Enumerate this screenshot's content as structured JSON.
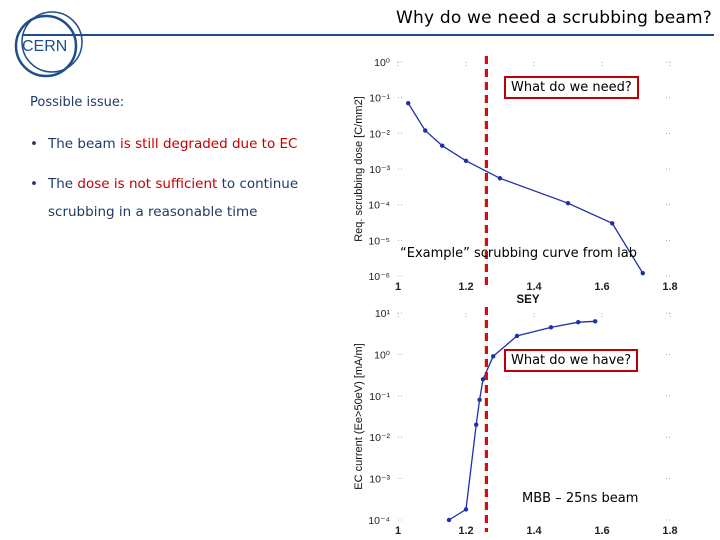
{
  "header": {
    "title": "Why do we need a scrubbing beam?",
    "logo_text": "CERN",
    "rule_color": "#1f4e8a"
  },
  "issue": {
    "heading": "Possible issue:",
    "bullets": [
      {
        "pre": "The beam ",
        "hl": "is still degraded due to EC",
        "post": "",
        "cont": ""
      },
      {
        "pre": "The ",
        "hl": "dose is not sufficient",
        "post": " to continue",
        "cont": "scrubbing in a reasonable time"
      }
    ],
    "highlight_color": "#c00000"
  },
  "callouts": {
    "top": "What do we need?",
    "bottom": "What do we have?"
  },
  "notes": {
    "top": "“Example” scrubbing curve from lab",
    "bottom": "MBB – 25ns beam"
  },
  "chart_data": [
    {
      "type": "line",
      "title": "",
      "xlabel": "SEY",
      "ylabel": "Req. scrubbing dose [C/mm2]",
      "yscale": "log",
      "xlim": [
        1,
        1.8
      ],
      "ylim": [
        1e-06,
        1
      ],
      "x_tick_labels": [
        "1",
        "1.2",
        "1.4",
        "1.6",
        "1.8"
      ],
      "y_tick_labels": [
        "10⁰",
        "10⁻¹",
        "10⁻²",
        "10⁻³",
        "10⁻⁴",
        "10⁻⁵",
        "10⁻⁶"
      ],
      "series": [
        {
          "color": "#1f2fa8",
          "x": [
            1.03,
            1.08,
            1.13,
            1.2,
            1.3,
            1.5,
            1.63,
            1.72
          ],
          "y": [
            0.07,
            0.012,
            0.0045,
            0.0017,
            0.00055,
            0.00011,
            3e-05,
            1.2e-06
          ]
        }
      ],
      "marker_line": {
        "x": 1.26,
        "color": "#d01010"
      }
    },
    {
      "type": "line",
      "title": "",
      "xlabel": "",
      "ylabel": "EC current (Ee>50eV) [mA/m]",
      "yscale": "log",
      "xlim": [
        1,
        1.8
      ],
      "ylim": [
        0.0001,
        10
      ],
      "x_tick_labels": [
        "1",
        "1.2",
        "1.4",
        "1.6",
        "1.8"
      ],
      "y_tick_labels": [
        "10¹",
        "10⁰",
        "10⁻¹",
        "10⁻²",
        "10⁻³",
        "10⁻⁴"
      ],
      "series": [
        {
          "color": "#1f2fa8",
          "x": [
            1.15,
            1.2,
            1.23,
            1.24,
            1.25,
            1.28,
            1.35,
            1.45,
            1.53,
            1.58
          ],
          "y": [
            0.0001,
            0.00018,
            0.02,
            0.08,
            0.25,
            0.9,
            2.8,
            4.5,
            6,
            6.3
          ]
        }
      ],
      "marker_line": {
        "x": 1.26,
        "color": "#d01010"
      }
    }
  ]
}
